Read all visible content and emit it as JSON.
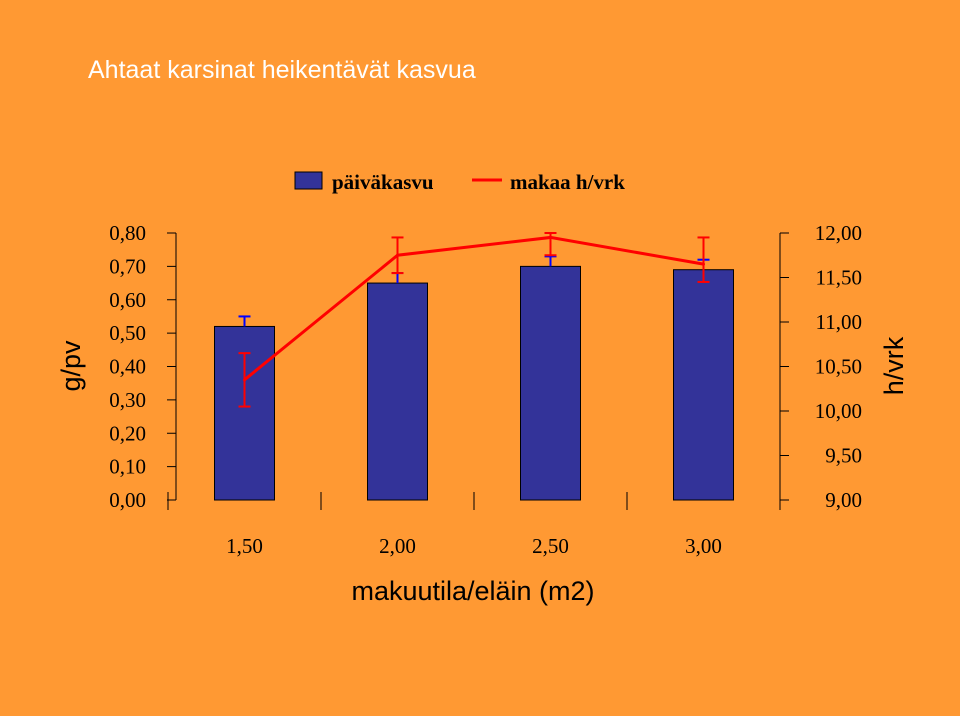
{
  "title": "Ahtaat karsinat heikentävät kasvua",
  "colors": {
    "background": "#ff9933",
    "bar": "#333399",
    "line": "#ff0000",
    "bar_error": "#0000ff",
    "line_error": "#ff0000"
  },
  "chart_data": {
    "type": "bar",
    "categories": [
      "1,50",
      "2,00",
      "2,50",
      "3,00"
    ],
    "x": [
      1.5,
      2.0,
      2.5,
      3.0
    ],
    "xlabel": "makuutila/eläin (m2)",
    "ylabel": "g/pv",
    "y2label": "h/vrk",
    "ylim": [
      0,
      0.8
    ],
    "y2lim": [
      9,
      12
    ],
    "yticks": [
      "0,00",
      "0,10",
      "0,20",
      "0,30",
      "0,40",
      "0,50",
      "0,60",
      "0,70",
      "0,80"
    ],
    "y2ticks": [
      "9,00",
      "9,50",
      "10,00",
      "10,50",
      "11,00",
      "11,50",
      "12,00"
    ],
    "legend_position": "top",
    "series": [
      {
        "name": "päiväkasvu",
        "type": "bar",
        "axis": "left",
        "values": [
          0.52,
          0.65,
          0.7,
          0.69
        ],
        "error_high": [
          0.55,
          0.68,
          0.73,
          0.72
        ]
      },
      {
        "name": "makaa h/vrk",
        "type": "line",
        "axis": "right",
        "values": [
          10.35,
          11.75,
          11.95,
          11.65
        ],
        "error_low": [
          10.05,
          11.55,
          11.75,
          11.45
        ],
        "error_high": [
          10.65,
          11.95,
          12.0,
          11.95
        ]
      }
    ]
  }
}
